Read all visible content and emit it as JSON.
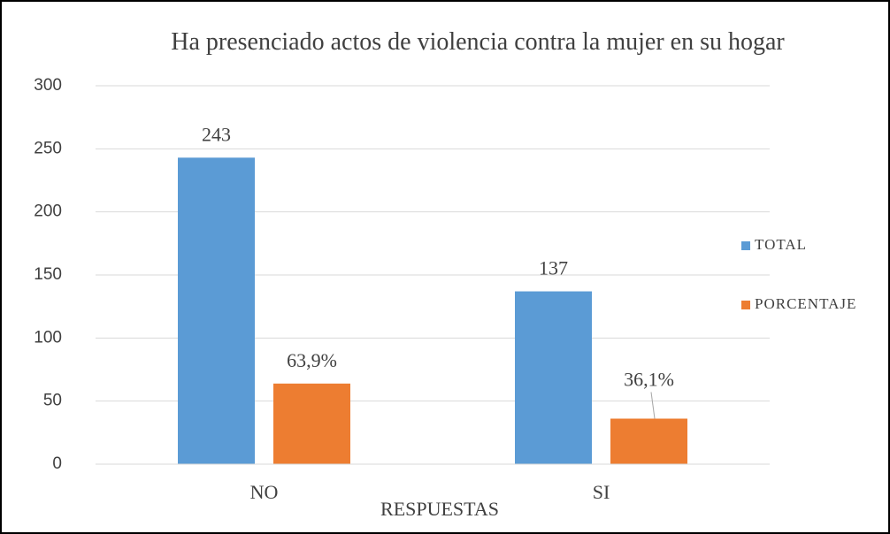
{
  "chart_data": {
    "type": "bar",
    "title": "Ha presenciado actos de violencia contra la mujer en su hogar",
    "x_label": "RESPUESTAS",
    "categories": [
      "NO",
      "SI"
    ],
    "series": [
      {
        "name": "TOTAL",
        "color": "#5b9bd5",
        "values": [
          243,
          137
        ]
      },
      {
        "name": "PORCENTAJE",
        "color": "#ed7d31",
        "values": [
          63.9,
          36.1
        ],
        "value_labels": [
          "63,9%",
          "36,1%"
        ]
      }
    ],
    "ylim": [
      0,
      300
    ],
    "yticks": [
      0,
      50,
      100,
      150,
      200,
      250,
      300
    ],
    "grid": true,
    "legend": "right"
  }
}
